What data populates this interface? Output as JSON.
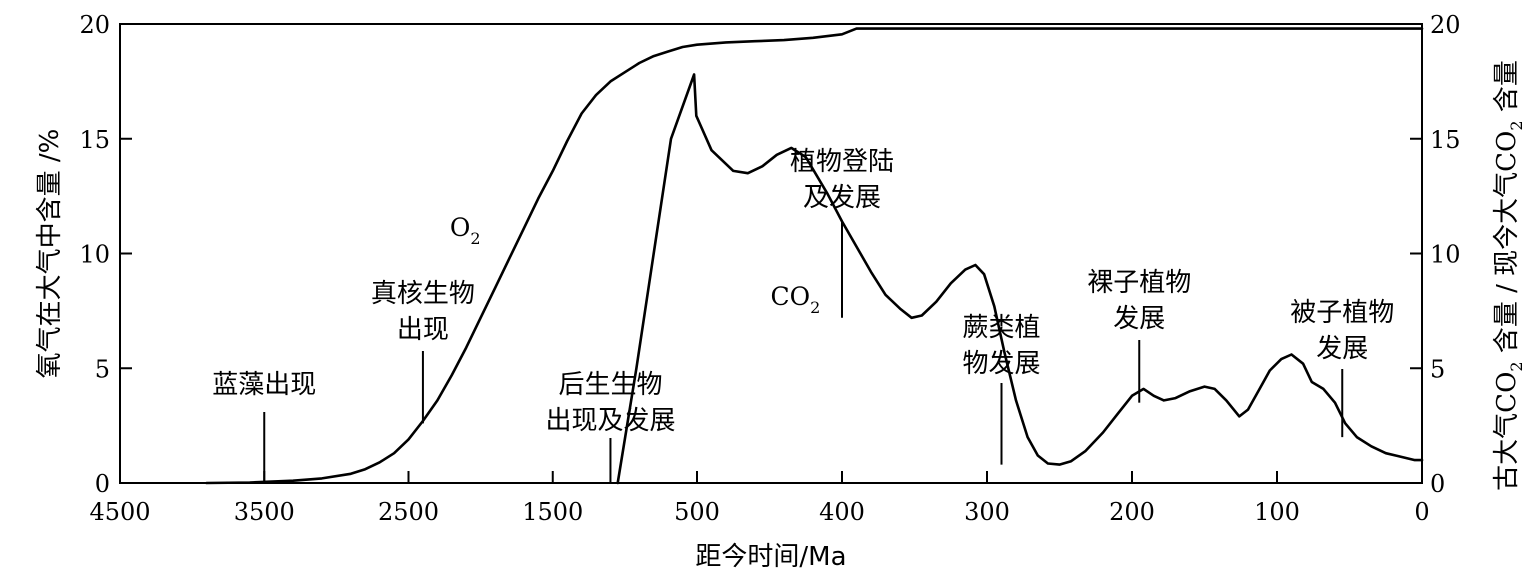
{
  "chart_data": {
    "type": "line",
    "x_unit": "Ma",
    "xlabel": "距今时间/Ma",
    "ylabel_left": "氧气在大气中含量 /%",
    "ylabel_right": {
      "before": "古大气",
      "sub_a_base": "CO",
      "sub_a_sub": "2",
      "middle": " 含量 / 现今大气",
      "sub_b_base": "CO",
      "sub_b_sub": "2",
      "after": " 含量"
    },
    "x_ticks": [
      {
        "value": 4500,
        "label": "4500"
      },
      {
        "value": 3500,
        "label": "3500"
      },
      {
        "value": 2500,
        "label": "2500"
      },
      {
        "value": 1500,
        "label": "1500"
      },
      {
        "value": 500,
        "label": "500"
      },
      {
        "value": 400,
        "label": "400"
      },
      {
        "value": 300,
        "label": "300"
      },
      {
        "value": 200,
        "label": "200"
      },
      {
        "value": 100,
        "label": "100"
      },
      {
        "value": 0,
        "label": "0"
      }
    ],
    "y_ticks_left": [
      0,
      5,
      10,
      15,
      20
    ],
    "y_ticks_right": [
      0,
      5,
      10,
      15,
      20
    ],
    "ylim_left": [
      0,
      20
    ],
    "ylim_right": [
      0,
      20
    ],
    "grid": false,
    "series": [
      {
        "name": "O2",
        "label_base": "O",
        "label_sub": "2",
        "axis": "left",
        "points": [
          [
            3900,
            0.0
          ],
          [
            3600,
            0.02
          ],
          [
            3300,
            0.1
          ],
          [
            3100,
            0.2
          ],
          [
            2900,
            0.4
          ],
          [
            2800,
            0.6
          ],
          [
            2700,
            0.9
          ],
          [
            2600,
            1.3
          ],
          [
            2500,
            1.9
          ],
          [
            2400,
            2.7
          ],
          [
            2300,
            3.6
          ],
          [
            2200,
            4.7
          ],
          [
            2100,
            5.9
          ],
          [
            2000,
            7.2
          ],
          [
            1900,
            8.5
          ],
          [
            1800,
            9.8
          ],
          [
            1700,
            11.1
          ],
          [
            1600,
            12.4
          ],
          [
            1500,
            13.6
          ],
          [
            1400,
            14.9
          ],
          [
            1300,
            16.1
          ],
          [
            1200,
            16.9
          ],
          [
            1100,
            17.5
          ],
          [
            1000,
            17.9
          ],
          [
            900,
            18.3
          ],
          [
            800,
            18.6
          ],
          [
            700,
            18.8
          ],
          [
            600,
            19.0
          ],
          [
            500,
            19.1
          ],
          [
            480,
            19.2
          ],
          [
            460,
            19.25
          ],
          [
            440,
            19.3
          ],
          [
            420,
            19.4
          ],
          [
            400,
            19.55
          ],
          [
            390,
            19.8
          ],
          [
            300,
            19.8
          ],
          [
            200,
            19.8
          ],
          [
            100,
            19.8
          ],
          [
            0,
            19.8
          ]
        ]
      },
      {
        "name": "CO2",
        "label_base": "CO",
        "label_sub": "2",
        "axis": "right",
        "points": [
          [
            1050,
            0.0
          ],
          [
            920,
            5.0
          ],
          [
            800,
            10.0
          ],
          [
            680,
            15.0
          ],
          [
            520,
            17.8
          ],
          [
            505,
            16.0
          ],
          [
            490,
            14.5
          ],
          [
            475,
            13.6
          ],
          [
            465,
            13.5
          ],
          [
            455,
            13.8
          ],
          [
            445,
            14.3
          ],
          [
            435,
            14.6
          ],
          [
            425,
            14.2
          ],
          [
            410,
            12.6
          ],
          [
            400,
            11.4
          ],
          [
            390,
            10.3
          ],
          [
            380,
            9.2
          ],
          [
            370,
            8.2
          ],
          [
            360,
            7.6
          ],
          [
            352,
            7.2
          ],
          [
            345,
            7.3
          ],
          [
            335,
            7.9
          ],
          [
            325,
            8.7
          ],
          [
            315,
            9.3
          ],
          [
            308,
            9.5
          ],
          [
            302,
            9.1
          ],
          [
            295,
            7.7
          ],
          [
            288,
            5.7
          ],
          [
            280,
            3.6
          ],
          [
            272,
            2.0
          ],
          [
            265,
            1.2
          ],
          [
            258,
            0.85
          ],
          [
            250,
            0.8
          ],
          [
            242,
            0.95
          ],
          [
            232,
            1.4
          ],
          [
            220,
            2.2
          ],
          [
            210,
            3.0
          ],
          [
            200,
            3.8
          ],
          [
            192,
            4.1
          ],
          [
            185,
            3.8
          ],
          [
            178,
            3.6
          ],
          [
            170,
            3.7
          ],
          [
            160,
            4.0
          ],
          [
            150,
            4.2
          ],
          [
            143,
            4.1
          ],
          [
            135,
            3.6
          ],
          [
            126,
            2.9
          ],
          [
            120,
            3.2
          ],
          [
            112,
            4.1
          ],
          [
            105,
            4.9
          ],
          [
            97,
            5.4
          ],
          [
            90,
            5.6
          ],
          [
            82,
            5.2
          ],
          [
            76,
            4.4
          ],
          [
            68,
            4.1
          ],
          [
            60,
            3.5
          ],
          [
            53,
            2.6
          ],
          [
            45,
            2.0
          ],
          [
            35,
            1.6
          ],
          [
            25,
            1.3
          ],
          [
            15,
            1.15
          ],
          [
            5,
            1.0
          ],
          [
            0,
            1.0
          ]
        ]
      }
    ],
    "annotations": [
      {
        "lines": [
          "蓝藻出现"
        ],
        "x": 3500,
        "pointer_to": 0.0
      },
      {
        "lines": [
          "真核生物",
          "出现"
        ],
        "x": 2400,
        "pointer_to": 2.6
      },
      {
        "lines": [
          "后生生物",
          "出现及发展"
        ],
        "x": 1100,
        "pointer_to": 0.0
      },
      {
        "lines": [
          "植物登陆",
          "及发展"
        ],
        "x": 400,
        "pointer_to": 7.2
      },
      {
        "lines": [
          "蕨类植",
          "物发展"
        ],
        "x": 290,
        "pointer_to": 0.8
      },
      {
        "lines": [
          "裸子植物",
          "发展"
        ],
        "x": 195,
        "pointer_to": 3.5
      },
      {
        "lines": [
          "被子植物",
          "发展"
        ],
        "x": 55,
        "pointer_to": 2.0
      }
    ]
  }
}
